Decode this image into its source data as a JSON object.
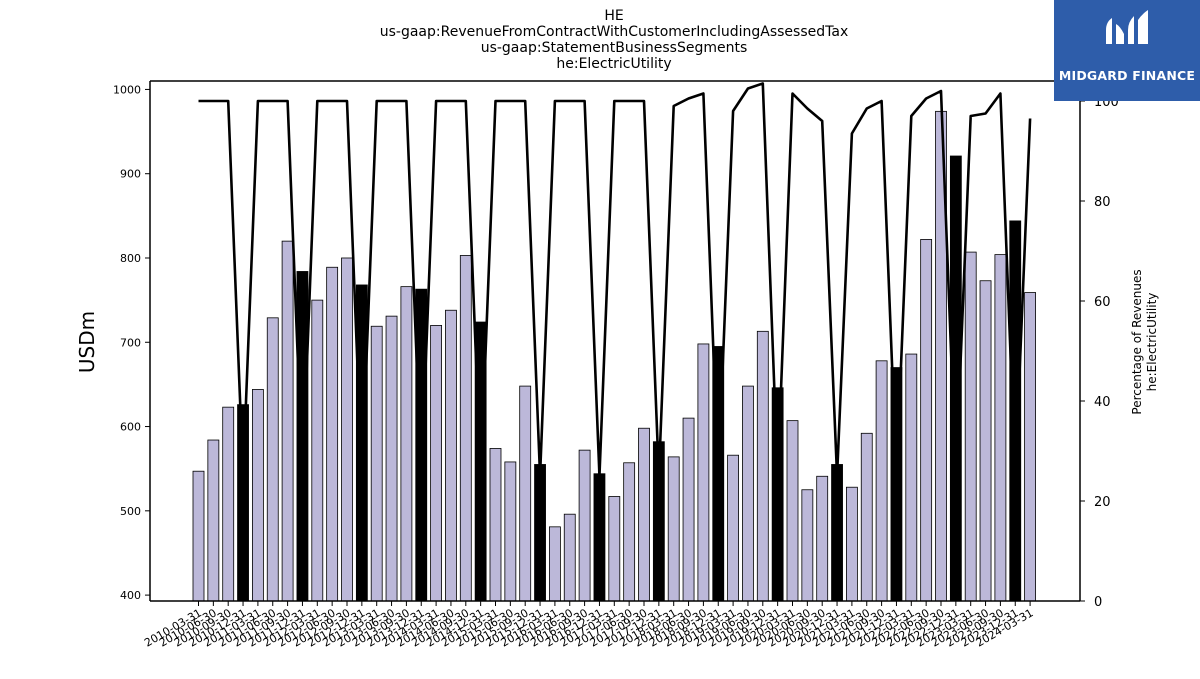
{
  "logo": {
    "text": "MIDGARD FINANCE",
    "background": "#2e5daa"
  },
  "chart_data": {
    "type": "bar",
    "title_lines": [
      "HE",
      "us-gaap:RevenueFromContractWithCustomerIncludingAssessedTax",
      "us-gaap:StatementBusinessSegments",
      "he:ElectricUtility"
    ],
    "xlabel": "",
    "ylabel": "USDm",
    "y2label_lines": [
      "Percentage of Revenues",
      "he:ElectricUtility"
    ],
    "ylim": [
      393,
      1010
    ],
    "yticks": [
      "400",
      "500",
      "600",
      "700",
      "800",
      "900",
      "1000"
    ],
    "y2lim": [
      0,
      104
    ],
    "y2ticks": [
      "0",
      "20",
      "40",
      "60",
      "80",
      "100"
    ],
    "grid": false,
    "colors": {
      "bar_quarter": "#bcb8d9",
      "bar_annual": "#000000",
      "line": "#000000"
    },
    "categories": [
      "2010-03-31",
      "2010-06-30",
      "2010-09-30",
      "2010-12-31",
      "2011-03-31",
      "2011-06-30",
      "2011-09-30",
      "2011-12-31",
      "2012-03-31",
      "2012-06-30",
      "2012-09-30",
      "2012-12-31",
      "2013-03-31",
      "2013-06-30",
      "2013-09-30",
      "2013-12-31",
      "2014-03-31",
      "2014-06-30",
      "2014-09-30",
      "2014-12-31",
      "2015-03-31",
      "2015-06-30",
      "2015-09-30",
      "2015-12-31",
      "2016-03-31",
      "2016-06-30",
      "2016-09-30",
      "2016-12-31",
      "2017-03-31",
      "2017-06-30",
      "2017-09-30",
      "2017-12-31",
      "2018-03-31",
      "2018-06-30",
      "2018-09-30",
      "2018-12-31",
      "2019-03-31",
      "2019-06-30",
      "2019-09-30",
      "2019-12-31",
      "2020-03-31",
      "2020-06-30",
      "2020-09-30",
      "2020-12-31",
      "2021-03-31",
      "2021-06-30",
      "2021-09-30",
      "2021-12-31",
      "2022-03-31",
      "2022-06-30",
      "2022-09-30",
      "2022-12-31",
      "2023-03-31",
      "2023-06-30",
      "2023-09-30",
      "2023-12-31",
      "2024-03-31"
    ],
    "series": [
      {
        "type": "bar",
        "values": [
          547,
          584,
          623,
          626,
          644,
          729,
          820,
          784,
          750,
          789,
          800,
          768,
          719,
          731,
          766,
          763,
          720,
          738,
          803,
          724,
          574,
          558,
          648,
          555,
          481,
          496,
          572,
          544,
          517,
          557,
          598,
          582,
          564,
          610,
          698,
          695,
          566,
          648,
          713,
          646,
          607,
          525,
          541,
          555,
          528,
          592,
          678,
          670,
          686,
          822,
          974,
          921,
          807,
          773,
          804,
          844,
          759
        ],
        "annual": [
          false,
          false,
          false,
          true,
          false,
          false,
          false,
          true,
          false,
          false,
          false,
          true,
          false,
          false,
          false,
          true,
          false,
          false,
          false,
          true,
          false,
          false,
          false,
          true,
          false,
          false,
          false,
          true,
          false,
          false,
          false,
          true,
          false,
          false,
          false,
          true,
          false,
          false,
          false,
          true,
          false,
          false,
          false,
          true,
          false,
          false,
          false,
          true,
          false,
          false,
          false,
          true,
          false,
          false,
          false,
          true,
          false
        ]
      },
      {
        "type": "line",
        "axis": "right",
        "values": [
          100,
          100,
          100,
          25,
          100,
          100,
          100,
          25,
          100,
          100,
          100,
          25,
          100,
          100,
          100,
          25,
          100,
          100,
          100,
          25,
          100,
          100,
          100,
          25,
          100,
          100,
          100,
          25,
          100,
          100,
          100,
          25,
          99,
          100.5,
          101.5,
          25,
          98,
          102.5,
          103.5,
          25,
          101.5,
          98.5,
          96,
          25,
          93.5,
          98.5,
          100,
          25,
          97,
          100.5,
          102,
          25,
          97,
          97.5,
          101.5,
          25,
          96.5
        ]
      }
    ]
  }
}
